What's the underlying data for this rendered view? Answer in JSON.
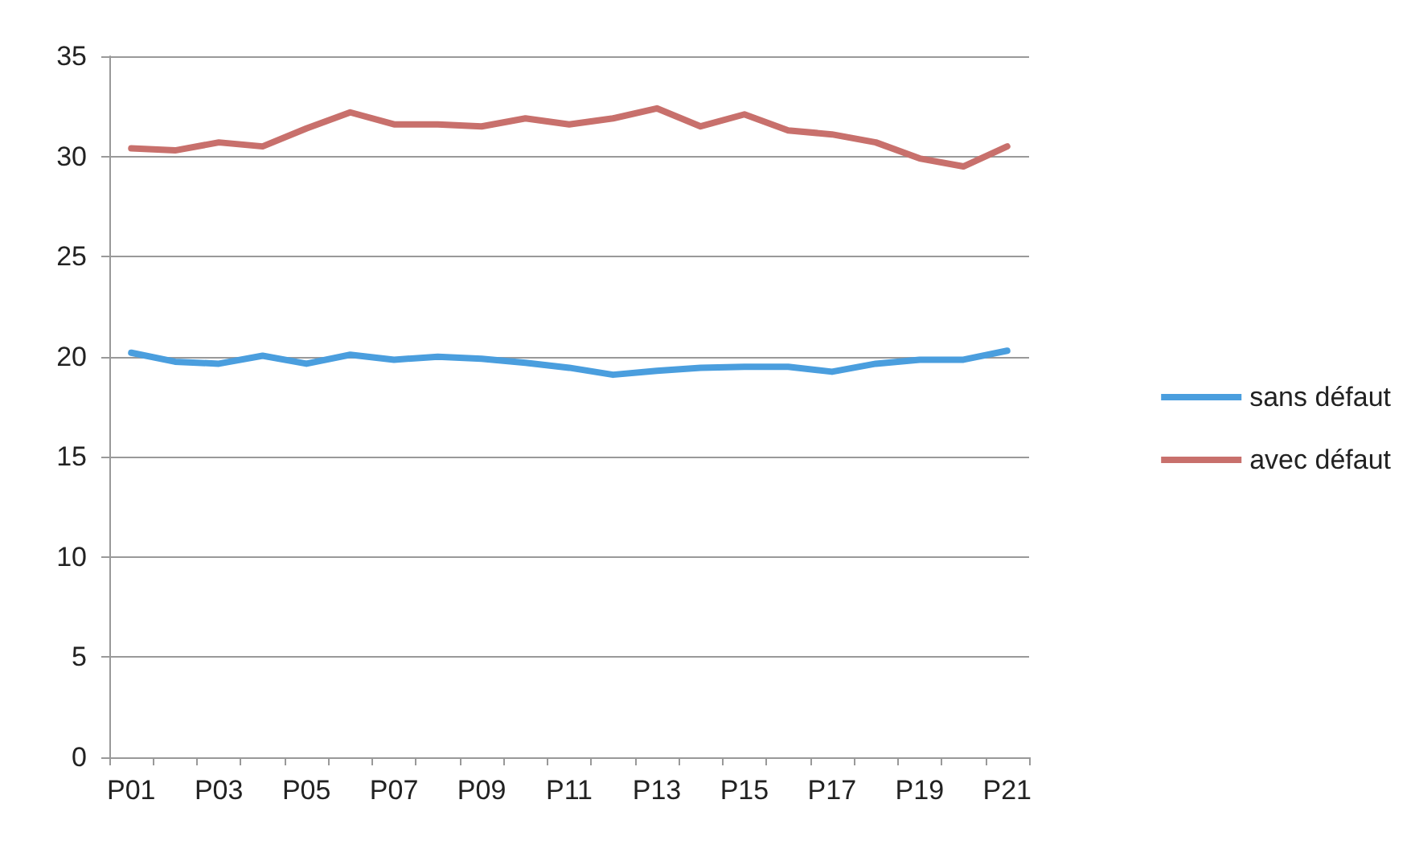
{
  "chart_data": {
    "type": "line",
    "categories": [
      "P01",
      null,
      "P03",
      null,
      "P05",
      null,
      "P07",
      null,
      "P09",
      null,
      "P11",
      null,
      "P13",
      null,
      "P15",
      null,
      "P17",
      null,
      "P19",
      null,
      "P21"
    ],
    "series": [
      {
        "name": "sans défaut",
        "color": "#4a9ede",
        "values": [
          20.2,
          19.75,
          19.65,
          20.05,
          19.65,
          20.1,
          19.85,
          20.0,
          19.9,
          19.7,
          19.45,
          19.1,
          19.3,
          19.45,
          19.5,
          19.5,
          19.25,
          19.65,
          19.85,
          19.85,
          20.3
        ]
      },
      {
        "name": "avec défaut",
        "color": "#c8706c",
        "values": [
          30.4,
          30.3,
          30.7,
          30.5,
          31.4,
          32.2,
          31.6,
          31.6,
          31.5,
          31.9,
          31.6,
          31.9,
          32.4,
          31.5,
          32.1,
          31.3,
          31.1,
          30.7,
          29.9,
          29.5,
          30.5
        ]
      }
    ],
    "ylim": [
      0,
      35
    ],
    "yticks": [
      0,
      5,
      10,
      15,
      20,
      25,
      30,
      35
    ],
    "grid": "y",
    "legend": "right",
    "marker": "none",
    "line_style": "solid"
  }
}
